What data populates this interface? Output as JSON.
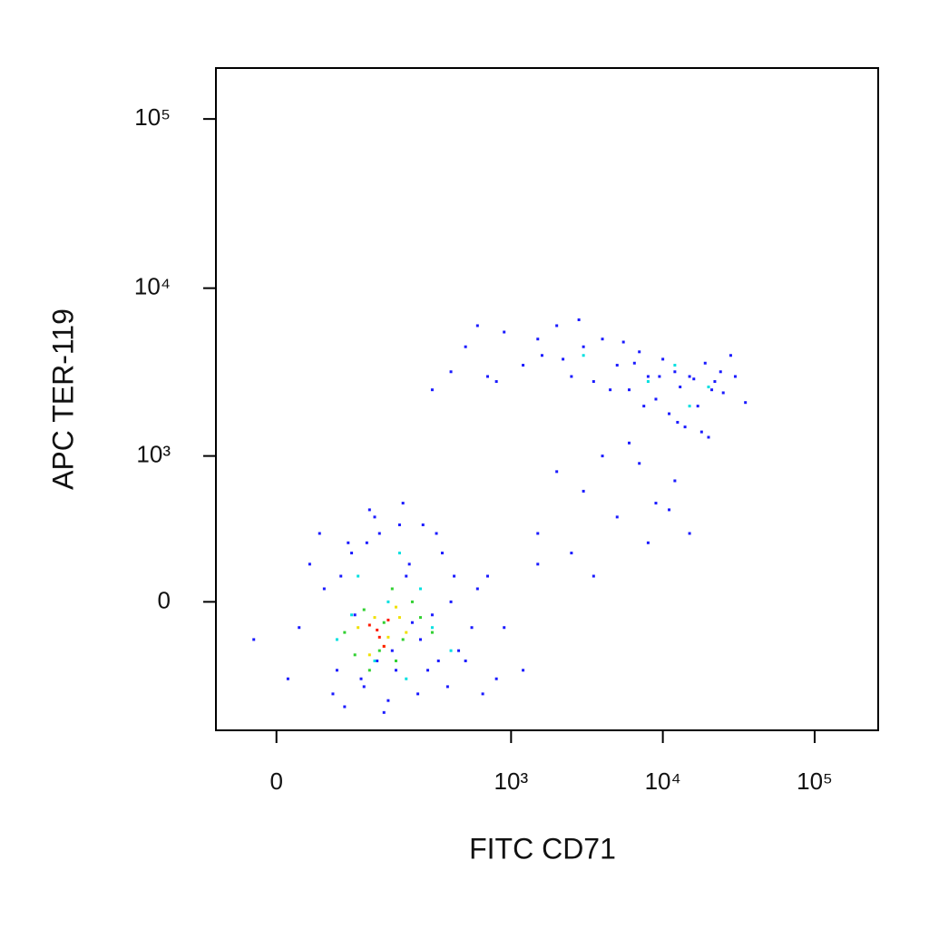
{
  "chart_data": {
    "type": "scatter",
    "scale": "biexponential",
    "x_label": "FITC CD71",
    "y_label": "APC TER-119",
    "xlim": [
      -60,
      262144
    ],
    "ylim": [
      -780,
      200000
    ],
    "xticks": [
      0,
      {
        "value": 1000,
        "label": "10³"
      },
      {
        "value": 10000,
        "label": "10⁴"
      },
      {
        "value": 100000,
        "label": "10⁵"
      }
    ],
    "yticks": [
      0,
      {
        "value": 1000,
        "label": "10³"
      },
      {
        "value": 10000,
        "label": "10⁴"
      },
      {
        "value": 100000,
        "label": "10⁵"
      }
    ],
    "series": [
      {
        "color": "#1a1aff",
        "x": [
          20,
          45,
          60,
          80,
          100,
          130,
          160,
          200,
          250,
          300,
          400,
          500,
          700,
          900,
          1200,
          30,
          55,
          75,
          95,
          120,
          150,
          180,
          220,
          280,
          350,
          450,
          600,
          800,
          1500,
          -20,
          10,
          40,
          70,
          110,
          140,
          190,
          240,
          320,
          380,
          550,
          65,
          85,
          105,
          125,
          170,
          210,
          260,
          330,
          420,
          650,
          1500,
          2500,
          3000,
          5000,
          7000,
          9000,
          12000,
          15000,
          4000,
          6000,
          2000,
          8000,
          11000,
          20000,
          3500,
          300,
          500,
          700,
          900,
          1200,
          1600,
          2000,
          2500,
          3000,
          3500,
          4000,
          5000,
          6000,
          7000,
          8000,
          9000,
          10000,
          11000,
          12000,
          13000,
          14000,
          15000,
          17000,
          19000,
          22000,
          25000,
          30000,
          35000,
          400,
          800,
          1500,
          2200,
          2800,
          4500,
          5500,
          6500,
          7500,
          9500,
          12500,
          16000,
          18000,
          21000,
          24000,
          28000,
          600
        ],
        "y": [
          -100,
          50,
          -300,
          200,
          -400,
          300,
          -200,
          100,
          -150,
          -50,
          0,
          -250,
          100,
          -100,
          -300,
          150,
          -450,
          250,
          -350,
          400,
          -500,
          350,
          -80,
          -300,
          200,
          -200,
          50,
          -350,
          150,
          -150,
          -350,
          300,
          -550,
          450,
          -600,
          500,
          -450,
          300,
          -400,
          -100,
          100,
          -50,
          250,
          -250,
          -300,
          150,
          350,
          -250,
          100,
          -450,
          300,
          200,
          600,
          400,
          900,
          500,
          700,
          300,
          1000,
          1200,
          800,
          250,
          450,
          1300,
          100,
          2500,
          4500,
          3000,
          5500,
          3500,
          4000,
          6000,
          3000,
          4500,
          2800,
          5000,
          3500,
          2500,
          4200,
          3000,
          2200,
          3800,
          1800,
          3200,
          2600,
          1500,
          3000,
          2000,
          3600,
          2800,
          2400,
          3000,
          2100,
          3200,
          2800,
          5000,
          3800,
          6500,
          2500,
          4800,
          3600,
          2000,
          3000,
          1600,
          2900,
          1400,
          2500,
          3200,
          4000,
          6000
        ]
      },
      {
        "color": "#00e0e0",
        "x": [
          60,
          90,
          120,
          150,
          200,
          250,
          300,
          80,
          180,
          400,
          8000,
          12000,
          15000,
          3000,
          20000
        ],
        "y": [
          -150,
          100,
          -250,
          0,
          -350,
          50,
          -100,
          -50,
          200,
          -200,
          2800,
          3500,
          2000,
          4000,
          2600
        ]
      },
      {
        "color": "#30d030",
        "x": [
          70,
          100,
          130,
          160,
          190,
          220,
          110,
          140,
          250,
          85,
          170,
          300
        ],
        "y": [
          -120,
          -30,
          -200,
          50,
          -150,
          0,
          -300,
          -80,
          -60,
          -220,
          -250,
          -120
        ]
      },
      {
        "color": "#f0e000",
        "x": [
          90,
          120,
          140,
          170,
          200,
          110,
          150,
          180
        ],
        "y": [
          -100,
          -60,
          -180,
          -20,
          -120,
          -220,
          -140,
          -60
        ]
      },
      {
        "color": "#ff1a00",
        "x": [
          110,
          130,
          150,
          125,
          140
        ],
        "y": [
          -90,
          -140,
          -70,
          -110,
          -180
        ]
      }
    ]
  }
}
